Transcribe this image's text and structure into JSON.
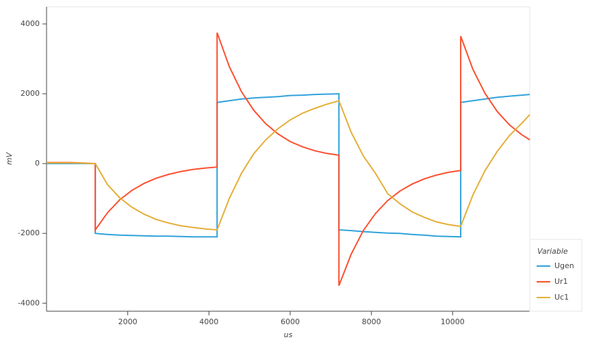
{
  "chart_data": {
    "type": "line",
    "x_label": "us",
    "y_label": "mV",
    "legend_title": "Variable",
    "x": [
      0,
      600,
      1200,
      1200,
      1500,
      1800,
      2100,
      2400,
      2700,
      3000,
      3300,
      3600,
      3900,
      4200,
      4200,
      4500,
      4800,
      5100,
      5400,
      5700,
      6000,
      6300,
      6600,
      6900,
      7200,
      7200,
      7500,
      7800,
      8100,
      8400,
      8700,
      9000,
      9300,
      9600,
      9900,
      10200,
      10200,
      10500,
      10800,
      11100,
      11400,
      11700,
      11900
    ],
    "series": [
      {
        "name": "Ugen",
        "color": "#30a2da",
        "values": [
          0,
          0,
          0,
          -2000,
          -2030,
          -2050,
          -2060,
          -2070,
          -2080,
          -2080,
          -2090,
          -2100,
          -2100,
          -2100,
          1750,
          1800,
          1850,
          1880,
          1900,
          1920,
          1950,
          1960,
          1980,
          1990,
          2000,
          -1900,
          -1920,
          -1950,
          -1970,
          -1990,
          -2000,
          -2030,
          -2050,
          -2080,
          -2090,
          -2100,
          1750,
          1800,
          1850,
          1900,
          1930,
          1960,
          1980
        ]
      },
      {
        "name": "Ur1",
        "color": "#fc4f30",
        "values": [
          30,
          30,
          0,
          -1900,
          -1410,
          -1040,
          -770,
          -570,
          -420,
          -310,
          -230,
          -170,
          -130,
          -100,
          3750,
          2780,
          2060,
          1530,
          1140,
          850,
          630,
          480,
          370,
          290,
          240,
          -3500,
          -2600,
          -1920,
          -1430,
          -1060,
          -790,
          -590,
          -440,
          -330,
          -250,
          -200,
          3650,
          2700,
          2010,
          1490,
          1110,
          830,
          680
        ]
      },
      {
        "name": "Uc1",
        "color": "#e5ae38",
        "values": [
          20,
          20,
          0,
          0,
          -600,
          -980,
          -1250,
          -1450,
          -1600,
          -1700,
          -1780,
          -1830,
          -1870,
          -1900,
          -1900,
          -1000,
          -280,
          280,
          680,
          1000,
          1250,
          1440,
          1580,
          1700,
          1800,
          1800,
          900,
          220,
          -280,
          -860,
          -1150,
          -1380,
          -1540,
          -1670,
          -1750,
          -1800,
          -1800,
          -900,
          -200,
          350,
          800,
          1150,
          1400
        ]
      }
    ],
    "xlim": [
      0,
      11900
    ],
    "ylim": [
      -4230,
      4490
    ],
    "xticks": [
      2000,
      4000,
      6000,
      8000,
      10000
    ],
    "yticks": [
      -4000,
      -2000,
      0,
      2000,
      4000
    ]
  }
}
